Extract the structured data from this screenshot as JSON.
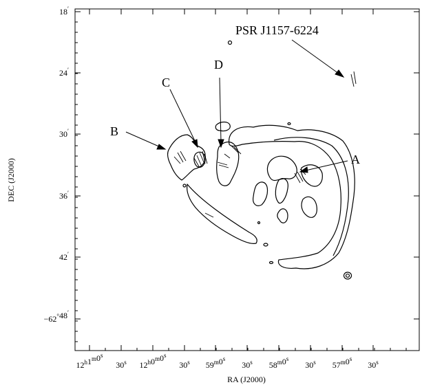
{
  "axes": {
    "xlabel": "RA (J2000)",
    "ylabel": "DEC (J2000)",
    "ra_ticks": [
      {
        "h": "12",
        "h_unit": "h",
        "m": "1",
        "m_unit": "m",
        "s": "0",
        "s_unit": "s",
        "label": "12h1m0s"
      },
      {
        "s": "30",
        "s_unit": "s",
        "label": "30s"
      },
      {
        "h": "12",
        "h_unit": "h",
        "m": "0",
        "m_unit": "m",
        "s": "0",
        "s_unit": "s",
        "label": "12h0m0s"
      },
      {
        "s": "30",
        "s_unit": "s",
        "label": "30s"
      },
      {
        "m": "59",
        "m_unit": "m",
        "s": "0",
        "s_unit": "s",
        "label": "59m0s"
      },
      {
        "s": "30",
        "s_unit": "s",
        "label": "30s"
      },
      {
        "m": "58",
        "m_unit": "m",
        "s": "0",
        "s_unit": "s",
        "label": "58m0s"
      },
      {
        "s": "30",
        "s_unit": "s",
        "label": "30s"
      },
      {
        "m": "57",
        "m_unit": "m",
        "s": "0",
        "s_unit": "s",
        "label": "57m0s"
      },
      {
        "s": "30",
        "s_unit": "s",
        "label": "30s"
      }
    ],
    "dec_ticks": [
      {
        "value": "18",
        "unit": "′",
        "label": "18′"
      },
      {
        "value": "24",
        "unit": "′",
        "label": "24′"
      },
      {
        "value": "30",
        "unit": "′",
        "label": "30′"
      },
      {
        "value": "36",
        "unit": "′",
        "label": "36′"
      },
      {
        "value": "42",
        "unit": "′",
        "label": "42′"
      },
      {
        "value": "48",
        "deg": "−62",
        "deg_unit": "°",
        "unit": "′",
        "label": "−62°48′"
      }
    ]
  },
  "annotations": {
    "pulsar": "PSR J1157-6224",
    "A": "A",
    "B": "B",
    "C": "C",
    "D": "D"
  }
}
